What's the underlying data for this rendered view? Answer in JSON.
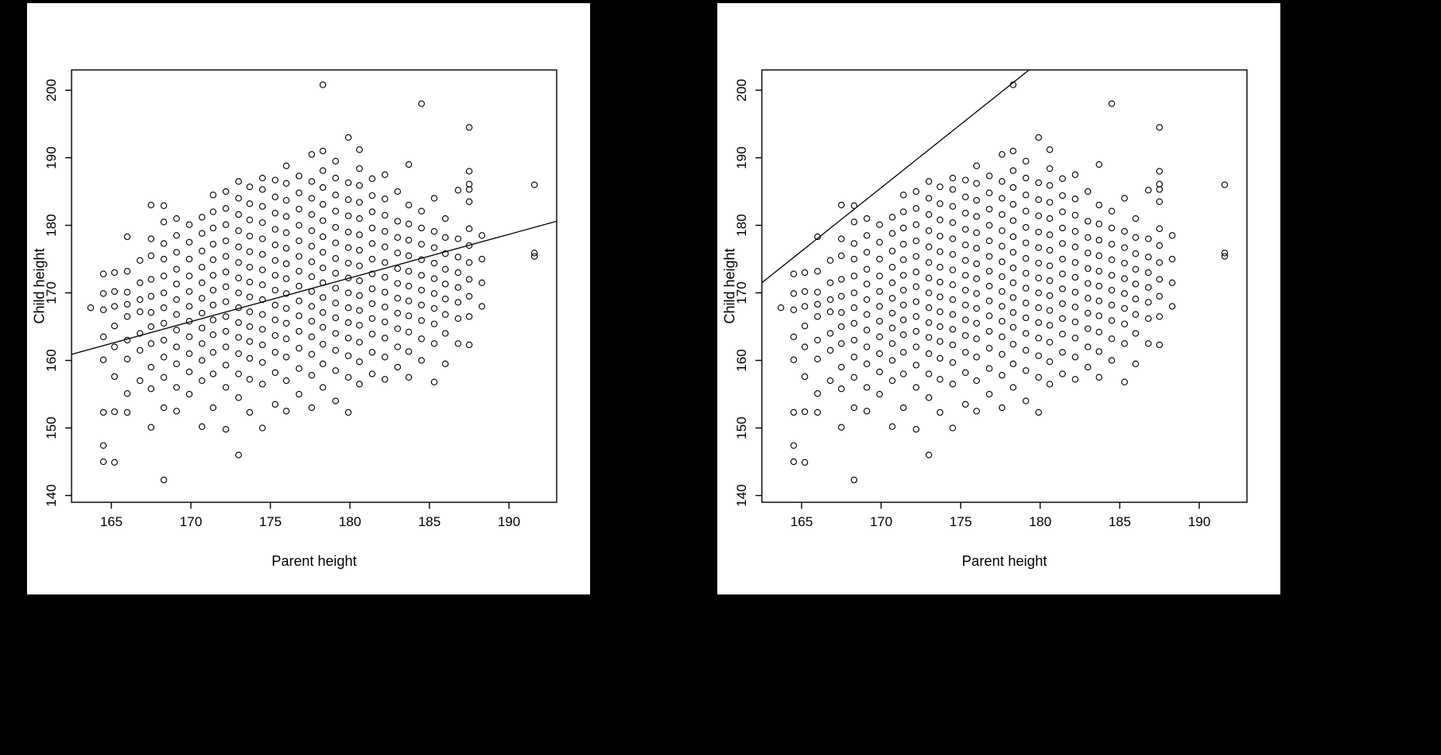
{
  "page": {
    "background": "#000000",
    "panel_background": "#ffffff",
    "ink_color": "#000000"
  },
  "chart_data": {
    "type": "scatter",
    "title": "",
    "xlabel": "Parent height",
    "ylabel": "Child height",
    "xlim": [
      162.5,
      193.0
    ],
    "ylim": [
      139.0,
      203.0
    ],
    "xticks": [
      165,
      170,
      175,
      180,
      185,
      190
    ],
    "yticks": [
      140,
      150,
      160,
      170,
      180,
      190,
      200
    ],
    "point_style": {
      "marker": "open-circle",
      "color": "#000000"
    },
    "panels": [
      {
        "id": "left",
        "line": {
          "endpoints": [
            [
              162.5,
              160.9
            ],
            [
              193.0,
              180.6
            ]
          ],
          "slope": 0.646,
          "intercept": 55.9
        }
      },
      {
        "id": "right",
        "line": {
          "endpoints": [
            [
              162.5,
              171.5
            ],
            [
              179.3,
              203.0
            ]
          ],
          "slope": 1.875,
          "intercept": -133.2
        }
      }
    ],
    "points_by_parent": {
      "163.7": [
        167.8
      ],
      "164.5": [
        145.0,
        147.4,
        152.3,
        160.1,
        163.5,
        167.5,
        169.9,
        172.8
      ],
      "165.2": [
        144.9,
        152.4,
        157.6,
        162.0,
        165.1,
        168.0,
        170.2,
        173.0
      ],
      "166.0": [
        152.3,
        155.1,
        160.2,
        163.0,
        166.5,
        168.3,
        170.1,
        173.2,
        178.3
      ],
      "166.8": [
        157.0,
        161.5,
        164.0,
        167.2,
        169.0,
        171.5,
        174.8
      ],
      "167.5": [
        150.1,
        155.8,
        159.0,
        162.5,
        165.0,
        167.1,
        169.5,
        172.0,
        175.5,
        178.0,
        183.0
      ],
      "168.3": [
        142.3,
        153.0,
        157.5,
        160.5,
        163.0,
        165.5,
        167.8,
        170.0,
        172.5,
        175.0,
        177.3,
        180.5,
        182.9
      ],
      "169.1": [
        152.5,
        156.0,
        159.5,
        162.0,
        164.5,
        166.8,
        169.0,
        171.3,
        173.5,
        176.0,
        178.5,
        181.0
      ],
      "169.9": [
        155.0,
        158.3,
        161.0,
        163.5,
        165.8,
        168.0,
        170.2,
        172.5,
        175.0,
        177.5,
        180.1
      ],
      "170.7": [
        150.2,
        157.0,
        160.0,
        162.5,
        164.8,
        167.0,
        169.2,
        171.5,
        173.8,
        176.2,
        178.8,
        181.2
      ],
      "171.4": [
        153.0,
        158.0,
        161.2,
        163.8,
        166.0,
        168.2,
        170.4,
        172.6,
        174.9,
        177.2,
        179.6,
        182.0,
        184.5
      ],
      "172.2": [
        149.8,
        156.0,
        159.3,
        162.0,
        164.3,
        166.5,
        168.7,
        170.9,
        173.1,
        175.4,
        177.7,
        180.1,
        182.5,
        185.0
      ],
      "173.0": [
        146.0,
        154.5,
        158.0,
        161.0,
        163.4,
        165.6,
        167.8,
        170.0,
        172.2,
        174.5,
        176.8,
        179.2,
        181.6,
        184.0,
        186.5
      ],
      "173.7": [
        152.3,
        157.2,
        160.3,
        162.8,
        165.0,
        167.2,
        169.4,
        171.6,
        173.8,
        176.1,
        178.4,
        180.8,
        183.2,
        185.7
      ],
      "174.5": [
        150.0,
        156.5,
        159.7,
        162.3,
        164.6,
        166.8,
        169.0,
        171.2,
        173.4,
        175.7,
        178.0,
        180.4,
        182.8,
        185.3,
        187.0
      ],
      "175.3": [
        153.5,
        158.2,
        161.2,
        163.7,
        166.0,
        168.2,
        170.4,
        172.6,
        174.8,
        177.1,
        179.4,
        181.8,
        184.2,
        186.7
      ],
      "176.0": [
        152.5,
        157.0,
        160.5,
        163.2,
        165.5,
        167.7,
        169.9,
        172.1,
        174.3,
        176.6,
        178.9,
        181.3,
        183.7,
        186.2,
        188.8
      ],
      "176.8": [
        155.0,
        158.8,
        161.8,
        164.3,
        166.6,
        168.8,
        171.0,
        173.2,
        175.4,
        177.7,
        180.0,
        182.4,
        184.8,
        187.3
      ],
      "177.6": [
        153.0,
        157.8,
        160.9,
        163.5,
        165.8,
        168.0,
        170.2,
        172.4,
        174.6,
        176.9,
        179.2,
        181.6,
        184.0,
        186.5,
        190.5
      ],
      "178.3": [
        156.0,
        159.5,
        162.4,
        164.9,
        167.1,
        169.3,
        171.5,
        173.7,
        176.0,
        178.3,
        180.7,
        183.1,
        185.6,
        188.1,
        191.0,
        200.8
      ],
      "179.1": [
        154.0,
        158.5,
        161.5,
        164.0,
        166.3,
        168.5,
        170.7,
        172.9,
        175.1,
        177.4,
        179.7,
        182.1,
        184.5,
        187.0,
        189.5
      ],
      "179.9": [
        152.3,
        157.5,
        160.7,
        163.3,
        165.6,
        167.8,
        170.0,
        172.2,
        174.4,
        176.7,
        179.0,
        181.4,
        183.8,
        186.3,
        193.0
      ],
      "180.6": [
        156.5,
        159.8,
        162.7,
        165.2,
        167.4,
        169.6,
        171.8,
        174.0,
        176.3,
        178.6,
        181.0,
        183.4,
        185.9,
        188.4,
        191.2
      ],
      "181.4": [
        158.0,
        161.2,
        163.9,
        166.2,
        168.4,
        170.6,
        172.8,
        175.0,
        177.3,
        179.6,
        182.0,
        184.4,
        186.9
      ],
      "182.2": [
        157.2,
        160.5,
        163.3,
        165.7,
        167.9,
        170.1,
        172.3,
        174.5,
        176.8,
        179.1,
        181.5,
        183.9,
        187.5
      ],
      "183.0": [
        159.0,
        162.0,
        164.7,
        167.0,
        169.2,
        171.4,
        173.6,
        175.9,
        178.2,
        180.6,
        185.0
      ],
      "183.7": [
        157.5,
        161.3,
        164.2,
        166.6,
        168.8,
        171.0,
        173.2,
        175.5,
        177.8,
        180.2,
        183.0,
        189.0
      ],
      "184.5": [
        160.0,
        163.2,
        165.9,
        168.2,
        170.4,
        172.6,
        174.9,
        177.2,
        179.6,
        182.1,
        198.0
      ],
      "185.3": [
        156.8,
        162.5,
        165.4,
        167.7,
        169.9,
        172.1,
        174.4,
        176.7,
        179.1,
        184.0
      ],
      "186.0": [
        159.5,
        164.0,
        166.8,
        169.1,
        171.3,
        173.5,
        175.8,
        178.2,
        181.0
      ],
      "186.8": [
        162.5,
        166.2,
        168.6,
        170.8,
        173.0,
        175.3,
        178.0,
        185.2
      ],
      "187.5": [
        162.3,
        166.5,
        169.5,
        172.0,
        174.5,
        177.0,
        179.5,
        183.5,
        185.3,
        186.1,
        188.0,
        194.5
      ],
      "188.3": [
        168.0,
        171.5,
        175.0,
        178.5
      ],
      "191.6": [
        175.4,
        175.9,
        186.0
      ]
    }
  }
}
